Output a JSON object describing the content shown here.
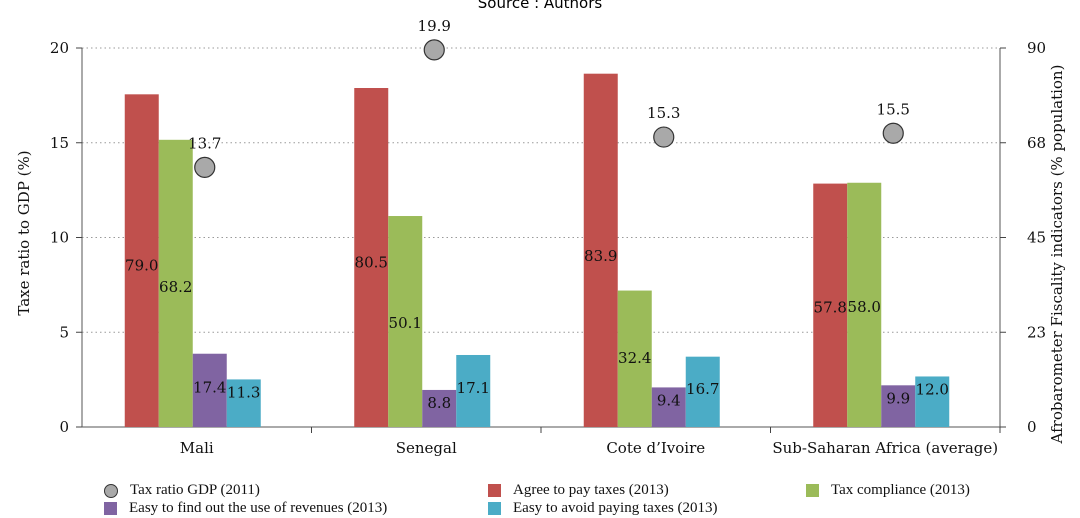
{
  "source": "Source : Authors",
  "chart_data": {
    "type": "bar",
    "categories": [
      "Mali",
      "Senegal",
      "Cote d’Ivoire",
      "Sub-Saharan Africa (average)"
    ],
    "y_left": {
      "label": "Taxe ratio to GDP (%)",
      "range": [
        0,
        20
      ],
      "ticks": [
        "0",
        "5",
        "10",
        "15",
        "20"
      ]
    },
    "y_right": {
      "label": "Afrobarometer Fiscality indicators (% population)",
      "range": [
        0,
        90
      ],
      "ticks": [
        "0",
        "23",
        "45",
        "68",
        "90"
      ]
    },
    "series": [
      {
        "name": "Agree to pay taxes (2013)",
        "axis": "right",
        "color": "#c0504d",
        "values": [
          79.0,
          80.5,
          83.9,
          57.8
        ],
        "labels": [
          "79.0",
          "80.5",
          "83.9",
          "57.8"
        ]
      },
      {
        "name": "Tax compliance (2013)",
        "axis": "right",
        "color": "#9bbb59",
        "values": [
          68.2,
          50.1,
          32.4,
          58.0
        ],
        "labels": [
          "68.2",
          "50.1",
          "32.4",
          "58.0"
        ]
      },
      {
        "name": "Easy to find out the use of revenues (2013)",
        "axis": "right",
        "color": "#8064a2",
        "values": [
          17.4,
          8.8,
          9.4,
          9.9
        ],
        "labels": [
          "17.4",
          "8.8",
          "9.4",
          "9.9"
        ]
      },
      {
        "name": "Easy to avoid paying taxes (2013)",
        "axis": "right",
        "color": "#4bacc6",
        "values": [
          11.3,
          17.1,
          16.7,
          12.0
        ],
        "labels": [
          "11.3",
          "17.1",
          "16.7",
          "12.0"
        ]
      }
    ],
    "points": {
      "name": "Tax ratio GDP (2011)",
      "axis": "left",
      "color": "#a9a9a9",
      "values": [
        13.7,
        19.9,
        15.3,
        15.5
      ],
      "labels": [
        "13.7",
        "19.9",
        "15.3",
        "15.5"
      ]
    },
    "gridlines": true,
    "legend_position": "bottom"
  }
}
